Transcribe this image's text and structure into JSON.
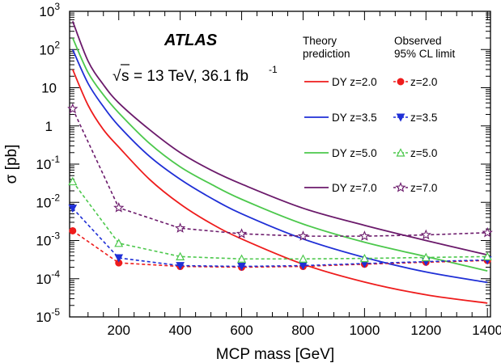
{
  "chart_data": {
    "type": "line",
    "experiment": "ATLAS",
    "energy_label": "= 13 TeV, 36.1 fb",
    "energy_sup": "-1",
    "sqrt_symbol": "√",
    "sqrt_s": "s",
    "xlabel": "MCP mass [GeV]",
    "ylabel": "σ [pb]",
    "xlim": [
      40,
      1410
    ],
    "ylim_log10": [
      -5,
      3
    ],
    "y_scale": "log",
    "x_ticks": [
      "200",
      "400",
      "600",
      "800",
      "1000",
      "1200",
      "1400"
    ],
    "y_ticks": [
      {
        "base": "10",
        "exp": "3"
      },
      {
        "base": "10",
        "exp": "2"
      },
      {
        "base": "10",
        "exp": ""
      },
      {
        "base": "1",
        "exp": ""
      },
      {
        "base": "10",
        "exp": "-1"
      },
      {
        "base": "10",
        "exp": "-2"
      },
      {
        "base": "10",
        "exp": "-3"
      },
      {
        "base": "10",
        "exp": "-4"
      },
      {
        "base": "10",
        "exp": "-5"
      }
    ],
    "legend": {
      "theory_header_line1": "Theory",
      "theory_header_line2": "prediction",
      "observed_header_line1": "Observed",
      "observed_header_line2": "95% CL limit",
      "placement": "top-right"
    },
    "theory_series": [
      {
        "name": "DY z=2.0",
        "color": "#ee1c1c",
        "x": [
          50,
          100,
          150,
          200,
          300,
          400,
          500,
          600,
          800,
          1000,
          1200,
          1400
        ],
        "y": [
          30,
          3.5,
          0.8,
          0.28,
          0.04,
          0.009,
          0.0028,
          0.0011,
          0.00024,
          8.2e-05,
          3.8e-05,
          2.3e-05
        ]
      },
      {
        "name": "DY z=3.5",
        "color": "#1f2fd6",
        "x": [
          50,
          100,
          150,
          200,
          300,
          400,
          500,
          600,
          800,
          1000,
          1200,
          1400
        ],
        "y": [
          100,
          13,
          3.2,
          1.0,
          0.16,
          0.04,
          0.013,
          0.005,
          0.0011,
          0.00036,
          0.00015,
          8e-05
        ]
      },
      {
        "name": "DY z=5.0",
        "color": "#4cc84c",
        "x": [
          50,
          100,
          150,
          200,
          300,
          400,
          500,
          600,
          800,
          1000,
          1200,
          1400
        ],
        "y": [
          200,
          25,
          6.5,
          2.2,
          0.35,
          0.085,
          0.03,
          0.012,
          0.0027,
          0.0009,
          0.00038,
          0.00016
        ]
      },
      {
        "name": "DY z=7.0",
        "color": "#6b1a6b",
        "x": [
          50,
          100,
          150,
          200,
          300,
          400,
          500,
          600,
          800,
          1000,
          1200,
          1400
        ],
        "y": [
          550,
          50,
          12,
          4.0,
          0.8,
          0.2,
          0.07,
          0.03,
          0.007,
          0.0025,
          0.001,
          0.00042
        ]
      }
    ],
    "observed_series": [
      {
        "name": "z=2.0",
        "color": "#ee1c1c",
        "marker": "circle",
        "x": [
          50,
          200,
          400,
          600,
          800,
          1000,
          1200,
          1400
        ],
        "y": [
          0.0018,
          0.00026,
          0.00021,
          0.0002,
          0.00021,
          0.00024,
          0.00027,
          0.0003
        ]
      },
      {
        "name": "z=3.5",
        "color": "#1f2fd6",
        "marker": "triangle-down",
        "x": [
          50,
          200,
          400,
          600,
          800,
          1000,
          1200,
          1400
        ],
        "y": [
          0.007,
          0.00035,
          0.00022,
          0.00021,
          0.00022,
          0.00025,
          0.00028,
          0.00031
        ]
      },
      {
        "name": "z=5.0",
        "color": "#4cc84c",
        "marker": "triangle-up-open",
        "x": [
          50,
          200,
          400,
          600,
          800,
          1000,
          1200,
          1400
        ],
        "y": [
          0.035,
          0.00085,
          0.00038,
          0.00033,
          0.00033,
          0.00034,
          0.00036,
          0.00038
        ]
      },
      {
        "name": "z=7.0",
        "color": "#6b1a6b",
        "marker": "star-open",
        "x": [
          50,
          200,
          400,
          600,
          800,
          1000,
          1200,
          1400
        ],
        "y": [
          2.8,
          0.0072,
          0.0021,
          0.0015,
          0.0013,
          0.0013,
          0.0014,
          0.0016
        ]
      }
    ]
  }
}
